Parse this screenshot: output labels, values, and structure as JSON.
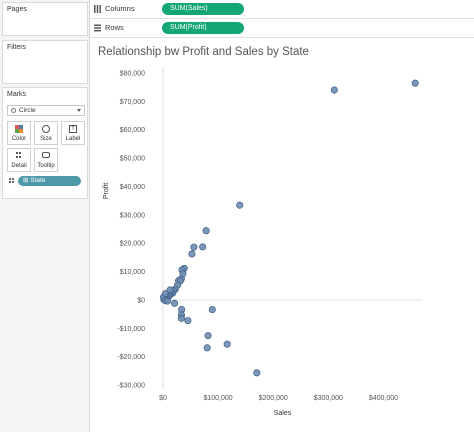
{
  "cards": {
    "pages": "Pages",
    "filters": "Filters",
    "marks": "Marks"
  },
  "marks": {
    "mark_type": "Circle",
    "buttons": {
      "color": "Color",
      "size": "Size",
      "label": "Label",
      "detail": "Detail",
      "tooltip": "Tooltip"
    },
    "detail_field": "State",
    "color_swatches": [
      "#e15759",
      "#4e79a7",
      "#59a14f",
      "#f28e2b"
    ]
  },
  "shelves": {
    "columns": {
      "label": "Columns",
      "field": "SUM(Sales)"
    },
    "rows": {
      "label": "Rows",
      "field": "SUM(Profit)"
    }
  },
  "colors": {
    "accent_pill": "#14a673",
    "detail_pill": "#4e99a9",
    "point_fill": "#6e8db0",
    "point_stroke": "#3f5f85"
  },
  "chart_data": {
    "type": "scatter",
    "title": "Relationship bw Profit and Sales by State",
    "xlabel": "Sales",
    "ylabel": "Profit",
    "xlim": [
      0,
      470000
    ],
    "ylim": [
      -30000,
      80000
    ],
    "x_ticks": [
      0,
      100000,
      200000,
      300000,
      400000
    ],
    "x_tick_labels": [
      "$0",
      "$100,000",
      "$200,000",
      "$300,000",
      "$400,000"
    ],
    "y_ticks": [
      -30000,
      -20000,
      -10000,
      0,
      10000,
      20000,
      30000,
      40000,
      50000,
      60000,
      70000,
      80000
    ],
    "y_tick_labels": [
      "-$30,000",
      "-$20,000",
      "-$10,000",
      "$0",
      "$10,000",
      "$20,000",
      "$30,000",
      "$40,000",
      "$50,000",
      "$60,000",
      "$70,000",
      "$80,000"
    ],
    "grid": false,
    "points": [
      {
        "x": 457700,
        "y": 76400
      },
      {
        "x": 310900,
        "y": 74000
      },
      {
        "x": 139200,
        "y": 33400
      },
      {
        "x": 78300,
        "y": 24400
      },
      {
        "x": 72000,
        "y": 18700
      },
      {
        "x": 56100,
        "y": 18600
      },
      {
        "x": 52500,
        "y": 16200
      },
      {
        "x": 38700,
        "y": 11100
      },
      {
        "x": 34500,
        "y": 10600
      },
      {
        "x": 36200,
        "y": 9200
      },
      {
        "x": 33300,
        "y": 7400
      },
      {
        "x": 28500,
        "y": 6800
      },
      {
        "x": 31500,
        "y": 6700
      },
      {
        "x": 26400,
        "y": 5200
      },
      {
        "x": 22300,
        "y": 3800
      },
      {
        "x": 19500,
        "y": 3200
      },
      {
        "x": 17400,
        "y": 2400
      },
      {
        "x": 13400,
        "y": 2000
      },
      {
        "x": 11700,
        "y": 1700
      },
      {
        "x": 9900,
        "y": 1100
      },
      {
        "x": 7300,
        "y": 800
      },
      {
        "x": 4900,
        "y": 500
      },
      {
        "x": 3300,
        "y": 400
      },
      {
        "x": 2200,
        "y": 300
      },
      {
        "x": 1900,
        "y": 200
      },
      {
        "x": 1600,
        "y": 100
      },
      {
        "x": 1000,
        "y": 1000
      },
      {
        "x": 4400,
        "y": 2200
      },
      {
        "x": 12900,
        "y": 3500
      },
      {
        "x": 4700,
        "y": -300
      },
      {
        "x": 8200,
        "y": -400
      },
      {
        "x": 21000,
        "y": -1200
      },
      {
        "x": 33800,
        "y": -3400
      },
      {
        "x": 33500,
        "y": -5300
      },
      {
        "x": 33300,
        "y": -6500
      },
      {
        "x": 45100,
        "y": -7300
      },
      {
        "x": 89500,
        "y": -3400
      },
      {
        "x": 81800,
        "y": -12600
      },
      {
        "x": 80200,
        "y": -16900
      },
      {
        "x": 116500,
        "y": -15600
      },
      {
        "x": 170200,
        "y": -25700
      }
    ]
  }
}
